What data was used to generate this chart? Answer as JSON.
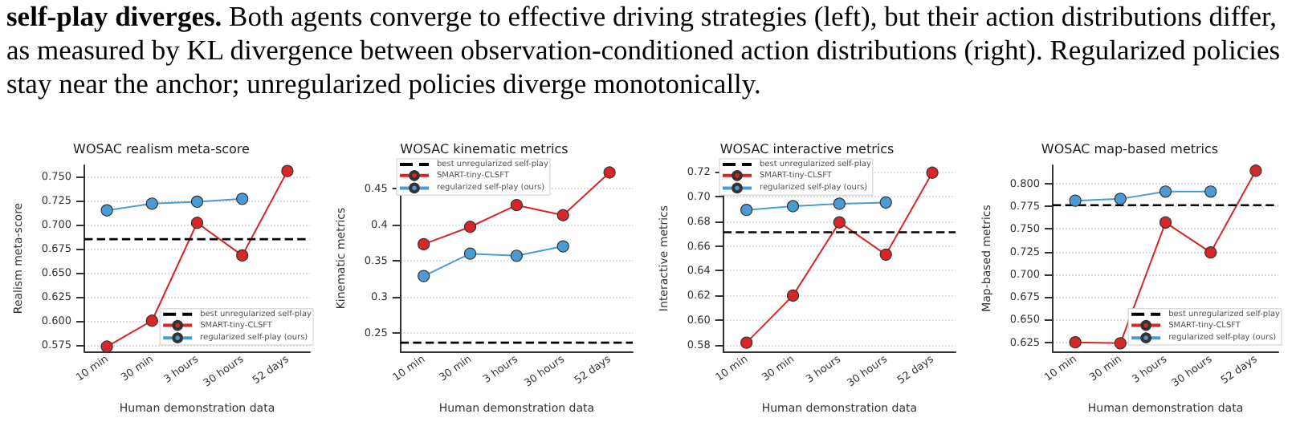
{
  "chart_data": [
    {
      "type": "line",
      "title": "WOSAC realism meta-score",
      "xlabel": "Human demonstration data",
      "ylabel": "Realism meta-score",
      "annotations": [
        "self-play diverges.",
        "Both agents converge to effective driving strategies (left), but their action distributions differ, as measured by KL divergence between observation-conditioned action distributions (right). Regularized policies stay near the anchor; unregularized policies diverge monotonically."
      ],
      "categories": [
        "10 min",
        "30 min",
        "3 hours",
        "30 hours",
        "52 days"
      ],
      "series": [
        {
          "name": "SMART-tiny-CLSFT",
          "color": "#d62728",
          "values": [
            0.573,
            0.6,
            0.702,
            0.668,
            0.756
          ]
        },
        {
          "name": "regularized self-play (ours)",
          "color": "#4a9bd4",
          "values": [
            0.715,
            0.722,
            0.724,
            0.727,
            null
          ]
        }
      ],
      "ref_lines": [
        {
          "axis": "y",
          "value": 0.685,
          "label": "best unregularized self-play",
          "color": "#000000",
          "line_style": "dashed"
        }
      ],
      "ylim": [
        0.568,
        0.762
      ],
      "yticks": [
        {
          "value": 0.575,
          "label": "0.575"
        },
        {
          "value": 0.6,
          "label": "0.600"
        },
        {
          "value": 0.625,
          "label": "0.625"
        },
        {
          "value": 0.65,
          "label": "0.650"
        },
        {
          "value": 0.675,
          "label": "0.675"
        },
        {
          "value": 0.7,
          "label": "0.700"
        },
        {
          "value": 0.725,
          "label": "0.725"
        },
        {
          "value": 0.75,
          "label": "0.750"
        }
      ],
      "grid": "y",
      "legend": "bottom right",
      "marker": "circle",
      "line_style": "solid"
    },
    {
      "type": "line",
      "title": "WOSAC kinematic metrics",
      "xlabel": "Human demonstration data",
      "ylabel": "Kinematic metrics",
      "categories": [
        "10 min",
        "30 min",
        "3 hours",
        "30 hours",
        "52 days"
      ],
      "series": [
        {
          "name": "SMART-tiny-CLSFT",
          "color": "#d62728",
          "values": [
            0.373,
            0.397,
            0.427,
            0.413,
            0.472
          ]
        },
        {
          "name": "regularized self-play (ours)",
          "color": "#4a9bd4",
          "values": [
            0.329,
            0.36,
            0.357,
            0.37,
            null
          ]
        }
      ],
      "ref_lines": [
        {
          "axis": "y",
          "value": 0.237,
          "label": "best unregularized self-play",
          "color": "#000000",
          "line_style": "dashed"
        }
      ],
      "ylim": [
        0.225,
        0.482
      ],
      "yticks": [
        0.25,
        0.3,
        0.35,
        0.4,
        0.45
      ],
      "grid": "y",
      "legend": "top left",
      "marker": "circle",
      "line_style": "solid"
    },
    {
      "type": "line",
      "title": "WOSAC interactive metrics",
      "xlabel": "Human demonstration data",
      "ylabel": "Interactive metrics",
      "categories": [
        "10 min",
        "30 min",
        "3 hours",
        "30 hours",
        "52 days"
      ],
      "series": [
        {
          "name": "SMART-tiny-CLSFT",
          "color": "#d62728",
          "values": [
            0.582,
            0.62,
            0.679,
            0.653,
            0.719
          ]
        },
        {
          "name": "regularized self-play (ours)",
          "color": "#4a9bd4",
          "values": [
            0.689,
            0.692,
            0.694,
            0.695,
            null
          ]
        }
      ],
      "ref_lines": [
        {
          "axis": "y",
          "value": 0.671,
          "label": "best unregularized self-play",
          "color": "#000000",
          "line_style": "dashed"
        }
      ],
      "ylim": [
        0.575,
        0.725
      ],
      "yticks": [
        {
          "value": 0.58,
          "label": "0.58"
        },
        {
          "value": 0.6,
          "label": "0.60"
        },
        {
          "value": 0.62,
          "label": "0.62"
        },
        {
          "value": 0.64,
          "label": "0.64"
        },
        {
          "value": 0.66,
          "label": "0.66"
        },
        {
          "value": 0.68,
          "label": "0.68"
        },
        {
          "value": 0.7,
          "label": "0.70"
        },
        {
          "value": 0.72,
          "label": "0.72"
        }
      ],
      "grid": "y",
      "legend": "top left",
      "marker": "circle",
      "line_style": "solid"
    },
    {
      "type": "line",
      "title": "WOSAC map-based metrics",
      "xlabel": "Human demonstration data",
      "ylabel": "Map-based metrics",
      "categories": [
        "10 min",
        "30 min",
        "3 hours",
        "30 hours",
        "52 days"
      ],
      "series": [
        {
          "name": "SMART-tiny-CLSFT",
          "color": "#d62728",
          "values": [
            0.625,
            0.624,
            0.757,
            0.724,
            0.814
          ]
        },
        {
          "name": "regularized self-play (ours)",
          "color": "#4a9bd4",
          "values": [
            0.781,
            0.783,
            0.791,
            0.791,
            null
          ]
        }
      ],
      "ref_lines": [
        {
          "axis": "y",
          "value": 0.776,
          "label": "best unregularized self-play",
          "color": "#000000",
          "line_style": "dashed"
        }
      ],
      "ylim": [
        0.615,
        0.82
      ],
      "yticks": [
        {
          "value": 0.625,
          "label": "0.625"
        },
        {
          "value": 0.65,
          "label": "0.650"
        },
        {
          "value": 0.675,
          "label": "0.675"
        },
        {
          "value": 0.7,
          "label": "0.700"
        },
        {
          "value": 0.725,
          "label": "0.725"
        },
        {
          "value": 0.75,
          "label": "0.750"
        },
        {
          "value": 0.775,
          "label": "0.775"
        },
        {
          "value": 0.8,
          "label": "0.800"
        }
      ],
      "grid": "y",
      "legend": "bottom right",
      "marker": "circle",
      "line_style": "solid"
    }
  ]
}
